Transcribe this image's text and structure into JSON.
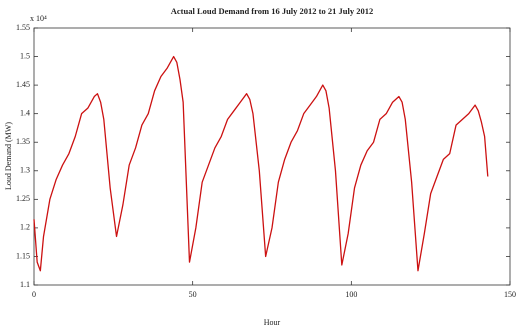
{
  "chart_data": {
    "type": "line",
    "title": "Actual Loud Demand from 16 July 2012 to 21 July 2012",
    "x_label": "Hour",
    "y_label": "Loud Demand (MW)",
    "y_multiplier": "x 10⁴",
    "x": [
      0,
      1,
      2,
      3,
      5,
      7,
      9,
      11,
      13,
      15,
      17,
      19,
      20,
      21,
      22,
      24,
      26,
      28,
      30,
      32,
      34,
      36,
      38,
      40,
      42,
      44,
      45,
      46,
      47,
      49,
      51,
      53,
      55,
      57,
      59,
      61,
      63,
      65,
      67,
      68,
      69,
      71,
      73,
      75,
      77,
      79,
      81,
      83,
      85,
      87,
      89,
      91,
      92,
      93,
      95,
      97,
      99,
      101,
      103,
      105,
      107,
      109,
      111,
      113,
      115,
      116,
      117,
      119,
      121,
      123,
      125,
      127,
      129,
      131,
      133,
      135,
      137,
      139,
      140,
      141,
      142,
      143
    ],
    "series": [
      {
        "color": "#cc1111",
        "values": [
          1.215,
          1.14,
          1.125,
          1.185,
          1.25,
          1.285,
          1.31,
          1.33,
          1.36,
          1.4,
          1.41,
          1.43,
          1.435,
          1.42,
          1.39,
          1.27,
          1.185,
          1.24,
          1.31,
          1.34,
          1.38,
          1.4,
          1.44,
          1.465,
          1.48,
          1.5,
          1.49,
          1.46,
          1.42,
          1.14,
          1.2,
          1.28,
          1.31,
          1.34,
          1.36,
          1.39,
          1.405,
          1.42,
          1.435,
          1.425,
          1.4,
          1.3,
          1.15,
          1.2,
          1.28,
          1.32,
          1.35,
          1.37,
          1.4,
          1.415,
          1.43,
          1.45,
          1.44,
          1.41,
          1.3,
          1.135,
          1.19,
          1.27,
          1.31,
          1.335,
          1.35,
          1.39,
          1.4,
          1.42,
          1.43,
          1.42,
          1.39,
          1.28,
          1.125,
          1.19,
          1.26,
          1.29,
          1.32,
          1.33,
          1.38,
          1.39,
          1.4,
          1.415,
          1.405,
          1.385,
          1.36,
          1.29
        ]
      }
    ],
    "xlim": [
      0,
      150
    ],
    "xticks": [
      0,
      50,
      100,
      150
    ],
    "ylim": [
      1.1,
      1.55
    ],
    "yticks": [
      1.1,
      1.15,
      1.2,
      1.25,
      1.3,
      1.35,
      1.4,
      1.45,
      1.5,
      1.55
    ],
    "grid": false
  }
}
